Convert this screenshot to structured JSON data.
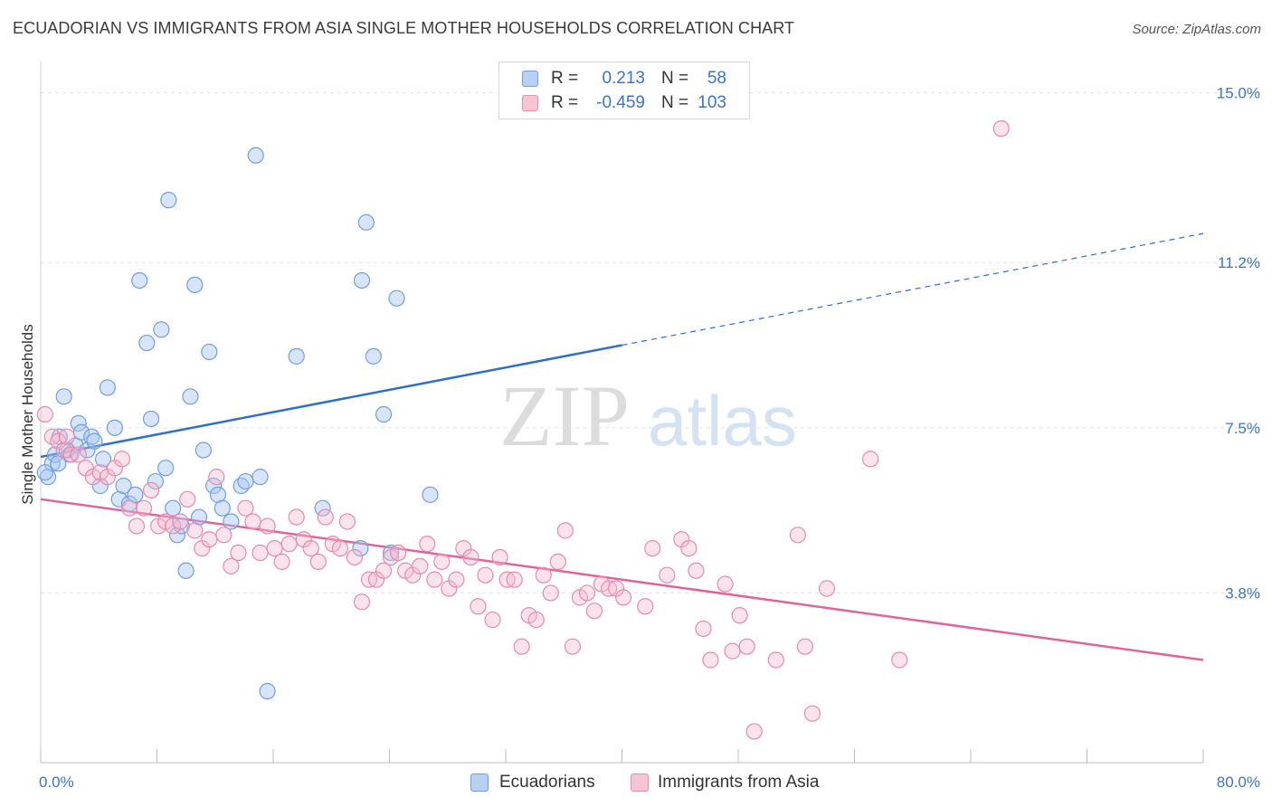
{
  "title": "ECUADORIAN VS IMMIGRANTS FROM ASIA SINGLE MOTHER HOUSEHOLDS CORRELATION CHART",
  "source": "Source: ZipAtlas.com",
  "watermark": {
    "zip": "ZIP",
    "atlas": "atlas"
  },
  "legend_stats": {
    "r_label": "R =",
    "n_label": "N =",
    "rows": [
      {
        "name": "Ecuadorians",
        "r": "0.213",
        "n": "58"
      },
      {
        "name": "Immigrants from Asia",
        "r": "-0.459",
        "n": "103"
      }
    ]
  },
  "colors": {
    "blue": "#6f9fe0",
    "blue_line": "#2f6fcc",
    "pink": "#e88aac",
    "pink_line": "#e0649a",
    "tick": "#3b74c8"
  },
  "chart_data": {
    "type": "scatter",
    "title": "ECUADORIAN VS IMMIGRANTS FROM ASIA SINGLE MOTHER HOUSEHOLDS CORRELATION CHART",
    "xlabel": "",
    "ylabel": "Single Mother Households",
    "xlim": [
      0,
      80
    ],
    "ylim": [
      0,
      15.5
    ],
    "x_tick_labels": [
      "0.0%",
      "80.0%"
    ],
    "y_ticks": [
      3.8,
      7.5,
      11.2,
      15.0
    ],
    "y_tick_labels": [
      "3.8%",
      "7.5%",
      "11.2%",
      "15.0%"
    ],
    "grid": true,
    "legend_placement": "bottom",
    "series": [
      {
        "name": "Ecuadorians",
        "color": "#6f9fe0",
        "trend": {
          "x": [
            0,
            40
          ],
          "y": [
            6.85,
            9.35
          ],
          "dashed_to": [
            80,
            11.85
          ]
        },
        "points": [
          [
            0.5,
            6.4
          ],
          [
            0.8,
            6.7
          ],
          [
            1.0,
            6.9
          ],
          [
            1.3,
            7.3
          ],
          [
            1.6,
            8.2
          ],
          [
            2.0,
            6.9
          ],
          [
            2.4,
            7.1
          ],
          [
            2.6,
            7.6
          ],
          [
            2.8,
            7.4
          ],
          [
            3.2,
            7.0
          ],
          [
            3.5,
            7.3
          ],
          [
            3.7,
            7.2
          ],
          [
            4.1,
            6.2
          ],
          [
            4.3,
            6.8
          ],
          [
            4.6,
            8.4
          ],
          [
            5.1,
            7.5
          ],
          [
            5.4,
            5.9
          ],
          [
            5.7,
            6.2
          ],
          [
            6.1,
            5.8
          ],
          [
            6.5,
            6.0
          ],
          [
            6.8,
            10.8
          ],
          [
            7.3,
            9.4
          ],
          [
            7.6,
            7.7
          ],
          [
            7.9,
            6.3
          ],
          [
            8.3,
            9.7
          ],
          [
            8.6,
            6.6
          ],
          [
            8.8,
            12.6
          ],
          [
            9.1,
            5.7
          ],
          [
            9.4,
            5.1
          ],
          [
            9.7,
            5.3
          ],
          [
            10.0,
            4.3
          ],
          [
            10.3,
            8.2
          ],
          [
            10.6,
            10.7
          ],
          [
            10.9,
            5.5
          ],
          [
            11.2,
            7.0
          ],
          [
            11.6,
            9.2
          ],
          [
            11.9,
            6.2
          ],
          [
            12.2,
            6.0
          ],
          [
            12.5,
            5.7
          ],
          [
            13.1,
            5.4
          ],
          [
            13.8,
            6.2
          ],
          [
            14.1,
            6.3
          ],
          [
            14.8,
            13.6
          ],
          [
            15.1,
            6.4
          ],
          [
            15.6,
            1.6
          ],
          [
            17.6,
            9.1
          ],
          [
            19.4,
            5.7
          ],
          [
            22.1,
            10.8
          ],
          [
            22.4,
            12.1
          ],
          [
            22.9,
            9.1
          ],
          [
            23.6,
            7.8
          ],
          [
            22.0,
            4.8
          ],
          [
            24.1,
            4.7
          ],
          [
            24.5,
            10.4
          ],
          [
            26.8,
            6.0
          ],
          [
            1.2,
            6.7
          ],
          [
            0.3,
            6.5
          ],
          [
            1.8,
            7.0
          ]
        ]
      },
      {
        "name": "Immigrants from Asia",
        "color": "#e88aac",
        "trend": {
          "x": [
            0,
            80
          ],
          "y": [
            5.9,
            2.3
          ]
        },
        "points": [
          [
            0.3,
            7.8
          ],
          [
            0.8,
            7.3
          ],
          [
            1.2,
            7.2
          ],
          [
            1.6,
            7.0
          ],
          [
            2.1,
            6.9
          ],
          [
            2.6,
            6.9
          ],
          [
            3.1,
            6.6
          ],
          [
            3.6,
            6.4
          ],
          [
            4.1,
            6.5
          ],
          [
            4.6,
            6.4
          ],
          [
            5.1,
            6.6
          ],
          [
            5.6,
            6.8
          ],
          [
            6.1,
            5.7
          ],
          [
            6.6,
            5.3
          ],
          [
            7.1,
            5.7
          ],
          [
            7.6,
            6.1
          ],
          [
            8.1,
            5.3
          ],
          [
            8.6,
            5.4
          ],
          [
            9.1,
            5.3
          ],
          [
            9.6,
            5.4
          ],
          [
            10.1,
            5.9
          ],
          [
            10.6,
            5.2
          ],
          [
            11.1,
            4.8
          ],
          [
            11.6,
            5.0
          ],
          [
            12.1,
            6.4
          ],
          [
            12.6,
            5.1
          ],
          [
            13.1,
            4.4
          ],
          [
            13.6,
            4.7
          ],
          [
            14.1,
            5.7
          ],
          [
            14.6,
            5.4
          ],
          [
            15.1,
            4.7
          ],
          [
            15.6,
            5.3
          ],
          [
            16.1,
            4.8
          ],
          [
            16.6,
            4.5
          ],
          [
            17.1,
            4.9
          ],
          [
            17.6,
            5.5
          ],
          [
            18.1,
            5.0
          ],
          [
            18.6,
            4.8
          ],
          [
            19.1,
            4.5
          ],
          [
            19.6,
            5.5
          ],
          [
            20.1,
            4.9
          ],
          [
            20.6,
            4.8
          ],
          [
            21.1,
            5.4
          ],
          [
            21.6,
            4.6
          ],
          [
            22.1,
            3.6
          ],
          [
            22.6,
            4.1
          ],
          [
            23.1,
            4.1
          ],
          [
            23.6,
            4.3
          ],
          [
            24.1,
            4.6
          ],
          [
            24.6,
            4.7
          ],
          [
            25.1,
            4.3
          ],
          [
            25.6,
            4.2
          ],
          [
            26.1,
            4.4
          ],
          [
            26.6,
            4.9
          ],
          [
            27.1,
            4.1
          ],
          [
            27.6,
            4.5
          ],
          [
            28.1,
            3.9
          ],
          [
            28.6,
            4.1
          ],
          [
            29.1,
            4.8
          ],
          [
            29.6,
            4.6
          ],
          [
            30.1,
            3.5
          ],
          [
            30.6,
            4.2
          ],
          [
            31.1,
            3.2
          ],
          [
            31.6,
            4.6
          ],
          [
            32.1,
            4.1
          ],
          [
            32.6,
            4.1
          ],
          [
            33.1,
            2.6
          ],
          [
            33.6,
            3.3
          ],
          [
            34.1,
            3.2
          ],
          [
            34.6,
            4.2
          ],
          [
            35.1,
            3.8
          ],
          [
            35.6,
            4.5
          ],
          [
            36.1,
            5.2
          ],
          [
            36.6,
            2.6
          ],
          [
            37.1,
            3.7
          ],
          [
            37.6,
            3.8
          ],
          [
            38.1,
            3.4
          ],
          [
            38.6,
            4.0
          ],
          [
            39.1,
            3.9
          ],
          [
            39.6,
            3.9
          ],
          [
            40.1,
            3.7
          ],
          [
            41.6,
            3.5
          ],
          [
            42.1,
            4.8
          ],
          [
            43.1,
            4.2
          ],
          [
            44.1,
            5.0
          ],
          [
            44.6,
            4.8
          ],
          [
            45.1,
            4.3
          ],
          [
            45.6,
            3.0
          ],
          [
            46.1,
            2.3
          ],
          [
            47.1,
            4.0
          ],
          [
            47.6,
            2.5
          ],
          [
            48.1,
            3.3
          ],
          [
            48.6,
            2.6
          ],
          [
            49.1,
            0.7
          ],
          [
            50.6,
            2.3
          ],
          [
            52.1,
            5.1
          ],
          [
            52.6,
            2.6
          ],
          [
            53.1,
            1.1
          ],
          [
            54.1,
            3.9
          ],
          [
            57.1,
            6.8
          ],
          [
            59.1,
            2.3
          ],
          [
            66.1,
            14.2
          ],
          [
            1.8,
            7.3
          ]
        ]
      }
    ]
  },
  "legend_bottom": [
    {
      "label": "Ecuadorians"
    },
    {
      "label": "Immigrants from Asia"
    }
  ]
}
